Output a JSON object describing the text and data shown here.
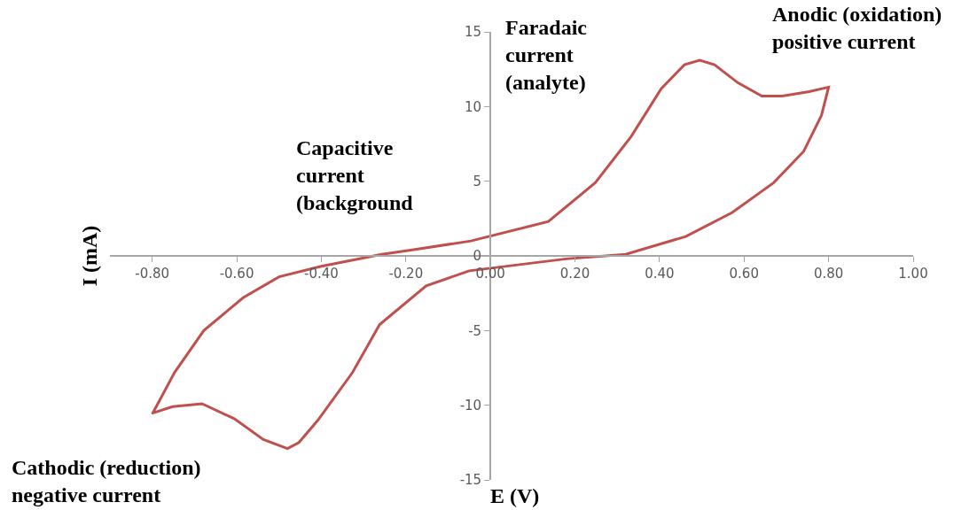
{
  "chart_data": {
    "type": "line",
    "xlabel": "E (V)",
    "ylabel": "I (mA)",
    "annotations": [
      "Anodic (oxidation)\npositive current",
      "Faradaic\ncurrent\n(analyte)",
      "Capacitive\ncurrent\n(background",
      "Cathodic (reduction)\nnegative current"
    ],
    "series": [
      {
        "color": "#c0504d",
        "x": [
          -0.8,
          -0.747,
          -0.678,
          -0.585,
          -0.5,
          -0.4,
          -0.257,
          -0.185,
          -0.046,
          0.137,
          0.248,
          0.333,
          0.404,
          0.459,
          0.495,
          0.53,
          0.585,
          0.642,
          0.69,
          0.754,
          0.8,
          0.783,
          0.741,
          0.67,
          0.572,
          0.462,
          0.32,
          0.179,
          -0.05,
          -0.152,
          -0.262,
          -0.326,
          -0.408,
          -0.453,
          -0.48,
          -0.537,
          -0.606,
          -0.682,
          -0.752,
          -0.796
        ],
        "values": [
          -10.6,
          -7.8,
          -5.0,
          -2.8,
          -1.4,
          -0.7,
          0.1,
          0.4,
          1.0,
          2.3,
          4.9,
          8.0,
          11.2,
          12.8,
          13.1,
          12.8,
          11.6,
          10.7,
          10.7,
          11.0,
          11.3,
          9.4,
          7.0,
          4.9,
          2.9,
          1.3,
          0.1,
          -0.2,
          -1.0,
          -2.0,
          -4.6,
          -7.8,
          -11.0,
          -12.5,
          -12.9,
          -12.3,
          -10.9,
          -9.9,
          -10.1,
          -10.5
        ]
      }
    ],
    "xlim": [
      -0.9,
      1.0
    ],
    "ylim": [
      -15,
      15
    ],
    "xticks": [
      {
        "value": -0.8,
        "label": "-0.80"
      },
      {
        "value": -0.6,
        "label": "-0.60"
      },
      {
        "value": -0.4,
        "label": "-0.40"
      },
      {
        "value": -0.2,
        "label": "-0.20"
      },
      {
        "value": 0,
        "label": "0.00"
      },
      {
        "value": 0.2,
        "label": "0.20"
      },
      {
        "value": 0.4,
        "label": "0.40"
      },
      {
        "value": 0.6,
        "label": "0.60"
      },
      {
        "value": 0.8,
        "label": "0.80"
      },
      {
        "value": 1.0,
        "label": "1.00"
      }
    ],
    "yticks": [
      -15,
      -10,
      -5,
      0,
      5,
      10,
      15
    ],
    "marker": "none",
    "line_style": "solid"
  }
}
